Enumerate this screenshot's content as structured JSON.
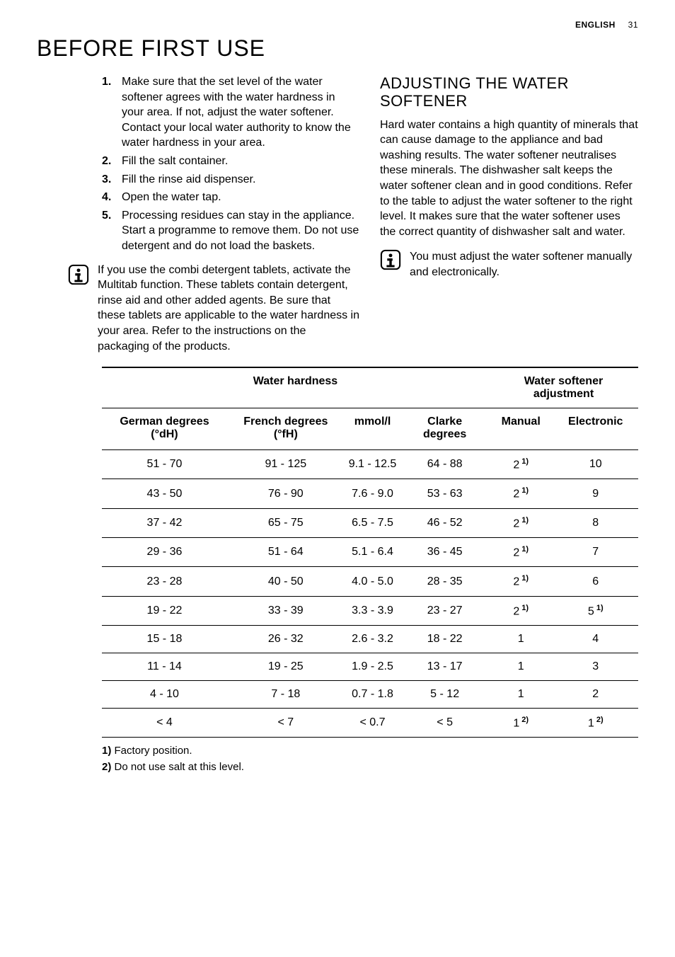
{
  "header": {
    "language": "ENGLISH",
    "page_number": "31"
  },
  "main_title": "BEFORE FIRST USE",
  "steps": [
    "Make sure that the set level of the water softener agrees with the water hardness in your area. If not, adjust the water softener. Contact your local water authority to know the water hardness in your area.",
    "Fill the salt container.",
    "Fill the rinse aid dispenser.",
    "Open the water tap.",
    "Processing residues can stay in the appliance. Start a programme to remove them. Do not use detergent and do not load the baskets."
  ],
  "left_info": "If you use the combi detergent tablets, activate the Multitab function. These tablets contain detergent, rinse aid and other added agents. Be sure that these tablets are applicable to the water hardness in your area. Refer to the instructions on the packaging of the products.",
  "right_section": {
    "title": "ADJUSTING THE WATER SOFTENER",
    "body": "Hard water contains a high quantity of minerals that can cause damage to the appliance and bad washing results. The water softener neutralises these minerals. The dishwasher salt keeps the water softener clean and in good conditions. Refer to the table to adjust the water softener to the right level. It makes sure that the water softener uses the correct quantity of dishwasher salt and water.",
    "info": "You must adjust the water softener manually and electronically."
  },
  "table": {
    "group_headers": {
      "hardness": "Water hardness",
      "adjustment": "Water softener adjustment"
    },
    "columns": [
      "German degrees (°dH)",
      "French degrees (°fH)",
      "mmol/l",
      "Clarke degrees",
      "Manual",
      "Electronic"
    ],
    "rows": [
      {
        "c0": "51 - 70",
        "c1": "91 - 125",
        "c2": "9.1 - 12.5",
        "c3": "64 - 88",
        "c4": "2",
        "c4_sup": "1)",
        "c5": "10",
        "c5_sup": ""
      },
      {
        "c0": "43 - 50",
        "c1": "76 - 90",
        "c2": "7.6 - 9.0",
        "c3": "53 - 63",
        "c4": "2",
        "c4_sup": "1)",
        "c5": "9",
        "c5_sup": ""
      },
      {
        "c0": "37 - 42",
        "c1": "65 - 75",
        "c2": "6.5 - 7.5",
        "c3": "46 - 52",
        "c4": "2",
        "c4_sup": "1)",
        "c5": "8",
        "c5_sup": ""
      },
      {
        "c0": "29 - 36",
        "c1": "51 - 64",
        "c2": "5.1 - 6.4",
        "c3": "36 - 45",
        "c4": "2",
        "c4_sup": "1)",
        "c5": "7",
        "c5_sup": ""
      },
      {
        "c0": "23 - 28",
        "c1": "40 - 50",
        "c2": "4.0 - 5.0",
        "c3": "28 - 35",
        "c4": "2",
        "c4_sup": "1)",
        "c5": "6",
        "c5_sup": ""
      },
      {
        "c0": "19 - 22",
        "c1": "33 - 39",
        "c2": "3.3 - 3.9",
        "c3": "23 - 27",
        "c4": "2",
        "c4_sup": "1)",
        "c5": "5",
        "c5_sup": "1)"
      },
      {
        "c0": "15 - 18",
        "c1": "26 - 32",
        "c2": "2.6 - 3.2",
        "c3": "18 - 22",
        "c4": "1",
        "c4_sup": "",
        "c5": "4",
        "c5_sup": ""
      },
      {
        "c0": "11 - 14",
        "c1": "19 - 25",
        "c2": "1.9 - 2.5",
        "c3": "13 - 17",
        "c4": "1",
        "c4_sup": "",
        "c5": "3",
        "c5_sup": ""
      },
      {
        "c0": "4 - 10",
        "c1": "7 - 18",
        "c2": "0.7 - 1.8",
        "c3": "5 - 12",
        "c4": "1",
        "c4_sup": "",
        "c5": "2",
        "c5_sup": ""
      },
      {
        "c0": "< 4",
        "c1": "< 7",
        "c2": "< 0.7",
        "c3": "< 5",
        "c4": "1",
        "c4_sup": "2)",
        "c5": "1",
        "c5_sup": "2)"
      }
    ],
    "column_widths_pct": [
      16,
      16,
      16,
      16,
      18,
      18
    ],
    "border_color": "#000000",
    "background": "#ffffff"
  },
  "footnotes": [
    {
      "num": "1)",
      "text": "Factory position."
    },
    {
      "num": "2)",
      "text": "Do not use salt at this level."
    }
  ],
  "icons": {
    "info": "info-icon"
  },
  "colors": {
    "text": "#000000",
    "bg": "#ffffff"
  },
  "typography": {
    "body_fontsize_pt": 12,
    "title_fontsize_pt": 24,
    "subtitle_fontsize_pt": 17
  }
}
